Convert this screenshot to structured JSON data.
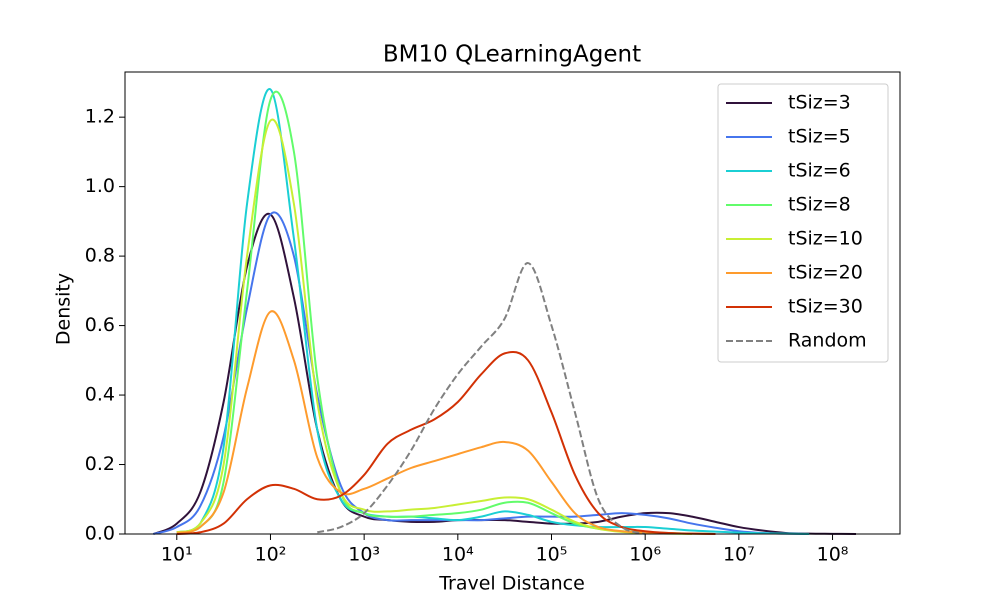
{
  "chart_data": {
    "type": "line",
    "title": "BM10 QLearningAgent",
    "x_label": "Travel Distance",
    "y_label": "Density",
    "x_scale": "log",
    "legend": "upper right",
    "x": [
      5.62,
      10,
      17.8,
      31.6,
      56.2,
      100,
      178,
      316,
      562,
      1000,
      1780,
      3160,
      5620,
      10000,
      17800,
      31600,
      56200,
      100000,
      178000,
      316000,
      562000,
      1000000,
      1780000,
      3160000,
      5620000,
      10000000,
      17800000,
      31600000,
      56200000,
      100000000,
      178000000
    ],
    "xlim": [
      2.8,
      525000000
    ],
    "xticks": [
      {
        "value": 10,
        "label": "10¹"
      },
      {
        "value": 100,
        "label": "10²"
      },
      {
        "value": 1000,
        "label": "10³"
      },
      {
        "value": 10000,
        "label": "10⁴"
      },
      {
        "value": 100000,
        "label": "10⁵"
      },
      {
        "value": 1000000,
        "label": "10⁶"
      },
      {
        "value": 10000000,
        "label": "10⁷"
      },
      {
        "value": 100000000,
        "label": "10⁸"
      }
    ],
    "ylim": [
      0,
      1.33
    ],
    "yticks": [
      {
        "value": 0,
        "label": "0.0"
      },
      0.2,
      0.4,
      0.6,
      0.8,
      {
        "value": 1,
        "label": "1.0"
      },
      1.2
    ],
    "series": [
      {
        "name": "tSiz=3",
        "color": "#30123b",
        "values": [
          0,
          0.03,
          0.12,
          0.38,
          0.77,
          0.92,
          0.68,
          0.3,
          0.1,
          0.05,
          0.04,
          0.035,
          0.035,
          0.04,
          0.04,
          0.04,
          0.035,
          0.03,
          0.03,
          0.035,
          0.05,
          0.06,
          0.06,
          0.05,
          0.035,
          0.02,
          0.01,
          0.003,
          0.001,
          0.0005,
          0
        ]
      },
      {
        "name": "tSiz=5",
        "color": "#4675ed",
        "values": [
          0,
          0.02,
          0.08,
          0.28,
          0.65,
          0.92,
          0.8,
          0.4,
          0.14,
          0.06,
          0.04,
          0.04,
          0.04,
          0.04,
          0.04,
          0.045,
          0.05,
          0.05,
          0.05,
          0.055,
          0.06,
          0.055,
          0.045,
          0.03,
          0.018,
          0.008,
          0.003,
          0.001,
          0,
          null,
          null
        ]
      },
      {
        "name": "tSiz=6",
        "color": "#1bcfd4",
        "values": [
          null,
          0.005,
          0.03,
          0.25,
          0.95,
          1.28,
          0.85,
          0.3,
          0.1,
          0.06,
          0.05,
          0.05,
          0.045,
          0.04,
          0.05,
          0.065,
          0.055,
          0.035,
          0.025,
          0.02,
          0.02,
          0.02,
          0.015,
          0.01,
          0.007,
          0.004,
          0.002,
          0.001,
          0,
          null,
          null
        ]
      },
      {
        "name": "tSiz=8",
        "color": "#62fc6b",
        "values": [
          null,
          0.005,
          0.02,
          0.15,
          0.7,
          1.25,
          1.1,
          0.45,
          0.12,
          0.06,
          0.05,
          0.05,
          0.055,
          0.06,
          0.07,
          0.09,
          0.09,
          0.06,
          0.03,
          0.015,
          0.008,
          0.005,
          0.003,
          0.001,
          0,
          null,
          null,
          null,
          null,
          null,
          null
        ]
      },
      {
        "name": "tSiz=10",
        "color": "#c8ef34",
        "values": [
          null,
          0.005,
          0.03,
          0.2,
          0.8,
          1.19,
          0.95,
          0.38,
          0.12,
          0.07,
          0.065,
          0.07,
          0.075,
          0.085,
          0.095,
          0.105,
          0.1,
          0.07,
          0.035,
          0.015,
          0.006,
          0.003,
          0.001,
          0,
          null,
          null,
          null,
          null,
          null,
          null,
          null
        ]
      },
      {
        "name": "tSiz=20",
        "color": "#fe9b2d",
        "values": [
          null,
          0.003,
          0.02,
          0.12,
          0.42,
          0.64,
          0.5,
          0.22,
          0.12,
          0.13,
          0.16,
          0.19,
          0.21,
          0.23,
          0.25,
          0.265,
          0.24,
          0.15,
          0.06,
          0.02,
          0.008,
          0.004,
          0.002,
          0.001,
          0,
          null,
          null,
          null,
          null,
          null,
          null
        ]
      },
      {
        "name": "tSiz=30",
        "color": "#d23105",
        "values": [
          null,
          0,
          0.005,
          0.03,
          0.1,
          0.14,
          0.13,
          0.1,
          0.11,
          0.17,
          0.26,
          0.3,
          0.33,
          0.38,
          0.46,
          0.52,
          0.5,
          0.35,
          0.17,
          0.06,
          0.02,
          0.008,
          0.003,
          0.001,
          0,
          null,
          null,
          null,
          null,
          null,
          null
        ]
      },
      {
        "name": "Random",
        "color": "#808080",
        "dash": true,
        "values": [
          null,
          null,
          null,
          null,
          null,
          null,
          null,
          0.005,
          0.02,
          0.06,
          0.14,
          0.24,
          0.36,
          0.46,
          0.54,
          0.62,
          0.78,
          0.6,
          0.35,
          0.1,
          0.02,
          0,
          null,
          null,
          null,
          null,
          null,
          null,
          null,
          null,
          null
        ]
      }
    ]
  }
}
